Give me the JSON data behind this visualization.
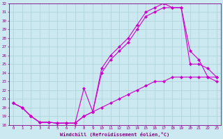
{
  "xlabel": "Windchill (Refroidissement éolien,°C)",
  "bg_color": "#cce8f0",
  "grid_color": "#aad0da",
  "line_color": "#cc00cc",
  "xlim": [
    -0.5,
    23.5
  ],
  "ylim": [
    18,
    32
  ],
  "yticks": [
    18,
    19,
    20,
    21,
    22,
    23,
    24,
    25,
    26,
    27,
    28,
    29,
    30,
    31,
    32
  ],
  "xticks": [
    0,
    1,
    2,
    3,
    4,
    5,
    6,
    7,
    8,
    9,
    10,
    11,
    12,
    13,
    14,
    15,
    16,
    17,
    18,
    19,
    20,
    21,
    22,
    23
  ],
  "s1_x": [
    0,
    1,
    2,
    3,
    4,
    5,
    6,
    7,
    8,
    9,
    10,
    11,
    12,
    13,
    14,
    15,
    16,
    17,
    18,
    19,
    20,
    21,
    22,
    23
  ],
  "s1_y": [
    20.5,
    20.0,
    19.0,
    18.3,
    18.3,
    18.2,
    18.2,
    18.2,
    19.0,
    19.5,
    20.0,
    20.5,
    21.0,
    21.5,
    22.0,
    22.5,
    23.0,
    23.0,
    23.5,
    23.5,
    23.5,
    23.5,
    23.5,
    23.5
  ],
  "s2_x": [
    0,
    1,
    2,
    3,
    4,
    5,
    6,
    7,
    8,
    9,
    10,
    11,
    12,
    13,
    14,
    15,
    16,
    17,
    18,
    19,
    20,
    21,
    22,
    23
  ],
  "s2_y": [
    20.5,
    20.0,
    19.0,
    18.3,
    18.3,
    18.2,
    18.2,
    18.2,
    22.2,
    19.5,
    24.5,
    26.0,
    27.0,
    28.0,
    29.5,
    31.0,
    31.5,
    32.0,
    31.5,
    31.5,
    26.5,
    25.5,
    23.5,
    23.0
  ],
  "s3_x": [
    0,
    1,
    2,
    3,
    4,
    5,
    6,
    7,
    8,
    9,
    10,
    11,
    12,
    13,
    14,
    15,
    16,
    17,
    18,
    19,
    20,
    21,
    22,
    23
  ],
  "s3_y": [
    20.5,
    20.0,
    19.0,
    18.3,
    18.3,
    18.2,
    18.2,
    18.2,
    19.0,
    19.5,
    24.0,
    25.5,
    26.5,
    27.5,
    29.0,
    30.5,
    31.0,
    31.5,
    31.5,
    31.5,
    25.0,
    25.0,
    24.5,
    23.5
  ]
}
